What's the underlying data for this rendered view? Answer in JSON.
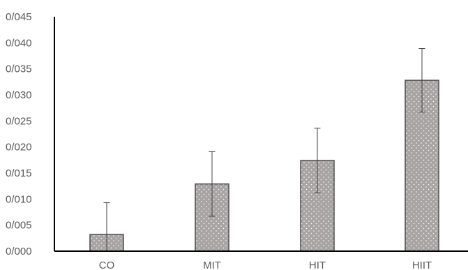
{
  "chart_data": {
    "type": "bar",
    "categories": [
      "CO",
      "MIT",
      "HIT",
      "HIIT"
    ],
    "values": [
      0.0032,
      0.0129,
      0.0174,
      0.0328
    ],
    "error": [
      0.0061,
      0.0062,
      0.0062,
      0.0061
    ],
    "yticks": [
      "0/000",
      "0/005",
      "0/010",
      "0/015",
      "0/020",
      "0/025",
      "0/030",
      "0/035",
      "0/040",
      "0/045"
    ],
    "ylim": [
      0,
      0.045
    ],
    "title": "",
    "xlabel": "",
    "ylabel": "",
    "grid": false,
    "legend": "none",
    "bar_color": "#a8a4a4",
    "bar_edge": "#4d4d4d",
    "dot_color": "#ffffff",
    "error_color": "#404040",
    "axis_color": "#000000"
  }
}
